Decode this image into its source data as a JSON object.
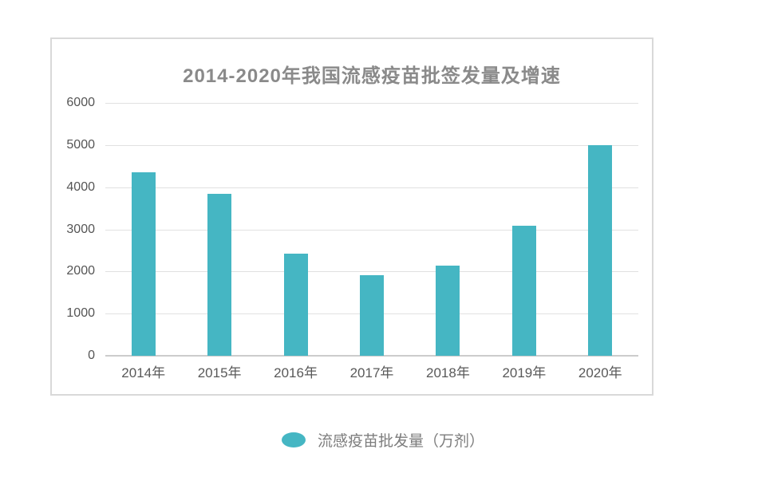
{
  "chart_data": {
    "type": "bar",
    "title": "2014-2020年我国流感疫苗批签发量及增速",
    "categories": [
      "2014年",
      "2015年",
      "2016年",
      "2017年",
      "2018年",
      "2019年",
      "2020年"
    ],
    "series": [
      {
        "name": "流感疫苗批发量（万剂）",
        "values": [
          4350,
          3840,
          2420,
          1910,
          2130,
          3080,
          5000
        ]
      }
    ],
    "xlabel": "",
    "ylabel": "",
    "ylim": [
      0,
      6000
    ],
    "y_ticks": [
      0,
      1000,
      2000,
      3000,
      4000,
      5000,
      6000
    ],
    "grid": true,
    "legend_position": "bottom",
    "colors": {
      "bar": "#45b6c3",
      "gridline": "#e1e1e1",
      "axis_line": "#cccccc",
      "panel_border": "#d9d9d9",
      "title_text": "#8a8a8a",
      "tick_text": "#595959",
      "legend_text": "#7d7d7d",
      "background": "#ffffff"
    }
  }
}
